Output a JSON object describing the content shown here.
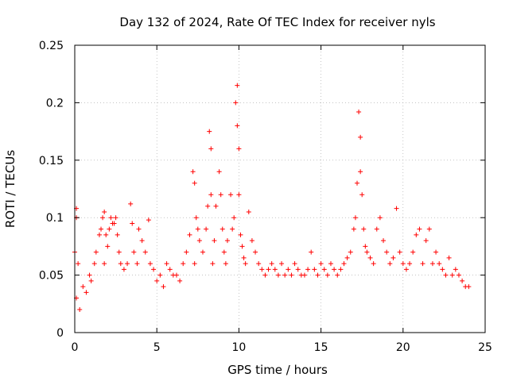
{
  "chart_data": {
    "type": "scatter",
    "title": "Day 132 of 2024, Rate Of TEC Index for receiver nyls",
    "xlabel": "GPS time / hours",
    "ylabel": "ROTI / TECUs",
    "xlim": [
      0,
      25
    ],
    "ylim": [
      0,
      0.25
    ],
    "xticks": [
      0,
      5,
      10,
      15,
      20,
      25
    ],
    "xtick_labels": [
      "0",
      "5",
      "10",
      "15",
      "20",
      "25"
    ],
    "yticks": [
      0,
      0.05,
      0.1,
      0.15,
      0.2,
      0.25
    ],
    "ytick_labels": [
      "0",
      "0.05",
      "0.1",
      "0.15",
      "0.2",
      "0.25"
    ],
    "grid": true,
    "marker": "plus",
    "series": [
      {
        "name": "ROTI",
        "color": "#ff0000",
        "x": [
          0.0,
          0.1,
          0.1,
          0.2,
          0.1,
          0.3,
          0.5,
          0.7,
          0.9,
          1.0,
          1.2,
          1.3,
          1.5,
          1.6,
          1.7,
          1.8,
          1.8,
          1.9,
          2.0,
          2.1,
          2.2,
          2.3,
          2.4,
          2.5,
          2.6,
          2.7,
          2.8,
          3.0,
          3.2,
          3.4,
          3.5,
          3.6,
          3.8,
          3.9,
          4.1,
          4.3,
          4.5,
          4.6,
          4.8,
          5.0,
          5.2,
          5.4,
          5.6,
          5.8,
          6.0,
          6.2,
          6.4,
          6.6,
          6.8,
          7.0,
          7.2,
          7.3,
          7.3,
          7.4,
          7.5,
          7.6,
          7.8,
          8.0,
          8.1,
          8.2,
          8.3,
          8.3,
          8.4,
          8.5,
          8.6,
          8.8,
          8.9,
          9.0,
          9.1,
          9.2,
          9.3,
          9.5,
          9.6,
          9.7,
          9.8,
          9.9,
          9.9,
          10.0,
          10.0,
          10.1,
          10.2,
          10.3,
          10.4,
          10.6,
          10.8,
          11.0,
          11.2,
          11.4,
          11.6,
          11.8,
          12.0,
          12.2,
          12.4,
          12.6,
          12.8,
          13.0,
          13.2,
          13.4,
          13.6,
          13.8,
          14.0,
          14.2,
          14.4,
          14.6,
          14.8,
          15.0,
          15.2,
          15.4,
          15.6,
          15.8,
          16.0,
          16.2,
          16.4,
          16.6,
          16.8,
          17.0,
          17.1,
          17.2,
          17.3,
          17.4,
          17.4,
          17.5,
          17.6,
          17.7,
          17.8,
          18.0,
          18.2,
          18.4,
          18.6,
          18.8,
          19.0,
          19.2,
          19.4,
          19.6,
          19.8,
          20.0,
          20.2,
          20.4,
          20.6,
          20.8,
          21.0,
          21.2,
          21.4,
          21.6,
          21.8,
          22.0,
          22.2,
          22.4,
          22.6,
          22.8,
          23.0,
          23.2,
          23.4,
          23.6,
          23.8,
          24.0
        ],
        "y": [
          0.07,
          0.108,
          0.1,
          0.06,
          0.03,
          0.02,
          0.04,
          0.035,
          0.05,
          0.045,
          0.06,
          0.07,
          0.085,
          0.09,
          0.1,
          0.105,
          0.06,
          0.085,
          0.075,
          0.09,
          0.1,
          0.095,
          0.095,
          0.1,
          0.085,
          0.07,
          0.06,
          0.055,
          0.06,
          0.112,
          0.095,
          0.07,
          0.06,
          0.09,
          0.08,
          0.07,
          0.098,
          0.06,
          0.055,
          0.045,
          0.05,
          0.04,
          0.06,
          0.055,
          0.05,
          0.05,
          0.045,
          0.06,
          0.07,
          0.085,
          0.14,
          0.13,
          0.06,
          0.1,
          0.09,
          0.08,
          0.07,
          0.09,
          0.11,
          0.175,
          0.16,
          0.12,
          0.06,
          0.08,
          0.11,
          0.14,
          0.12,
          0.09,
          0.07,
          0.06,
          0.08,
          0.12,
          0.09,
          0.1,
          0.2,
          0.215,
          0.18,
          0.16,
          0.12,
          0.085,
          0.075,
          0.065,
          0.06,
          0.105,
          0.08,
          0.07,
          0.06,
          0.055,
          0.05,
          0.055,
          0.06,
          0.055,
          0.05,
          0.06,
          0.05,
          0.055,
          0.05,
          0.06,
          0.055,
          0.05,
          0.05,
          0.055,
          0.07,
          0.055,
          0.05,
          0.06,
          0.055,
          0.05,
          0.06,
          0.055,
          0.05,
          0.055,
          0.06,
          0.065,
          0.07,
          0.09,
          0.1,
          0.13,
          0.192,
          0.17,
          0.14,
          0.12,
          0.09,
          0.075,
          0.07,
          0.065,
          0.06,
          0.09,
          0.1,
          0.08,
          0.07,
          0.06,
          0.065,
          0.108,
          0.07,
          0.06,
          0.055,
          0.06,
          0.07,
          0.085,
          0.09,
          0.06,
          0.08,
          0.09,
          0.06,
          0.07,
          0.06,
          0.055,
          0.05,
          0.065,
          0.05,
          0.055,
          0.05,
          0.045,
          0.04,
          0.04
        ]
      }
    ]
  }
}
